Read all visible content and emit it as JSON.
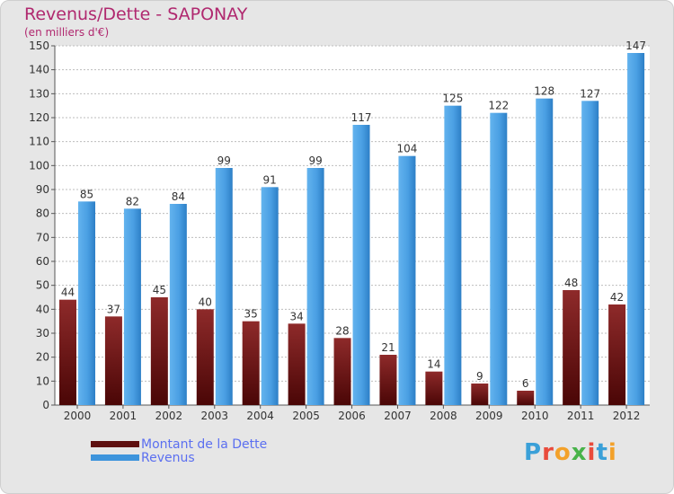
{
  "chart_data": {
    "type": "bar",
    "title": "Revenus/Dette - SAPONAY",
    "subtitle": "(en milliers d'€)",
    "categories": [
      "2000",
      "2001",
      "2002",
      "2003",
      "2004",
      "2005",
      "2006",
      "2007",
      "2008",
      "2009",
      "2010",
      "2011",
      "2012"
    ],
    "series": [
      {
        "name": "Montant de la Dette",
        "color": "#7a1a1a",
        "values": [
          44,
          37,
          45,
          40,
          35,
          34,
          28,
          21,
          14,
          9,
          6,
          48,
          42
        ]
      },
      {
        "name": "Revenus",
        "color": "#3d94dc",
        "values": [
          85,
          82,
          84,
          99,
          91,
          99,
          117,
          104,
          125,
          122,
          128,
          127,
          147
        ]
      }
    ],
    "yticks": [
      0,
      10,
      20,
      30,
      40,
      50,
      60,
      70,
      80,
      90,
      100,
      110,
      120,
      130,
      140,
      150
    ],
    "ylim": [
      0,
      150
    ],
    "grid": true,
    "legend_position": "bottom-left"
  },
  "logo": [
    "P",
    "r",
    "o",
    "x",
    "i",
    "t",
    "i"
  ]
}
